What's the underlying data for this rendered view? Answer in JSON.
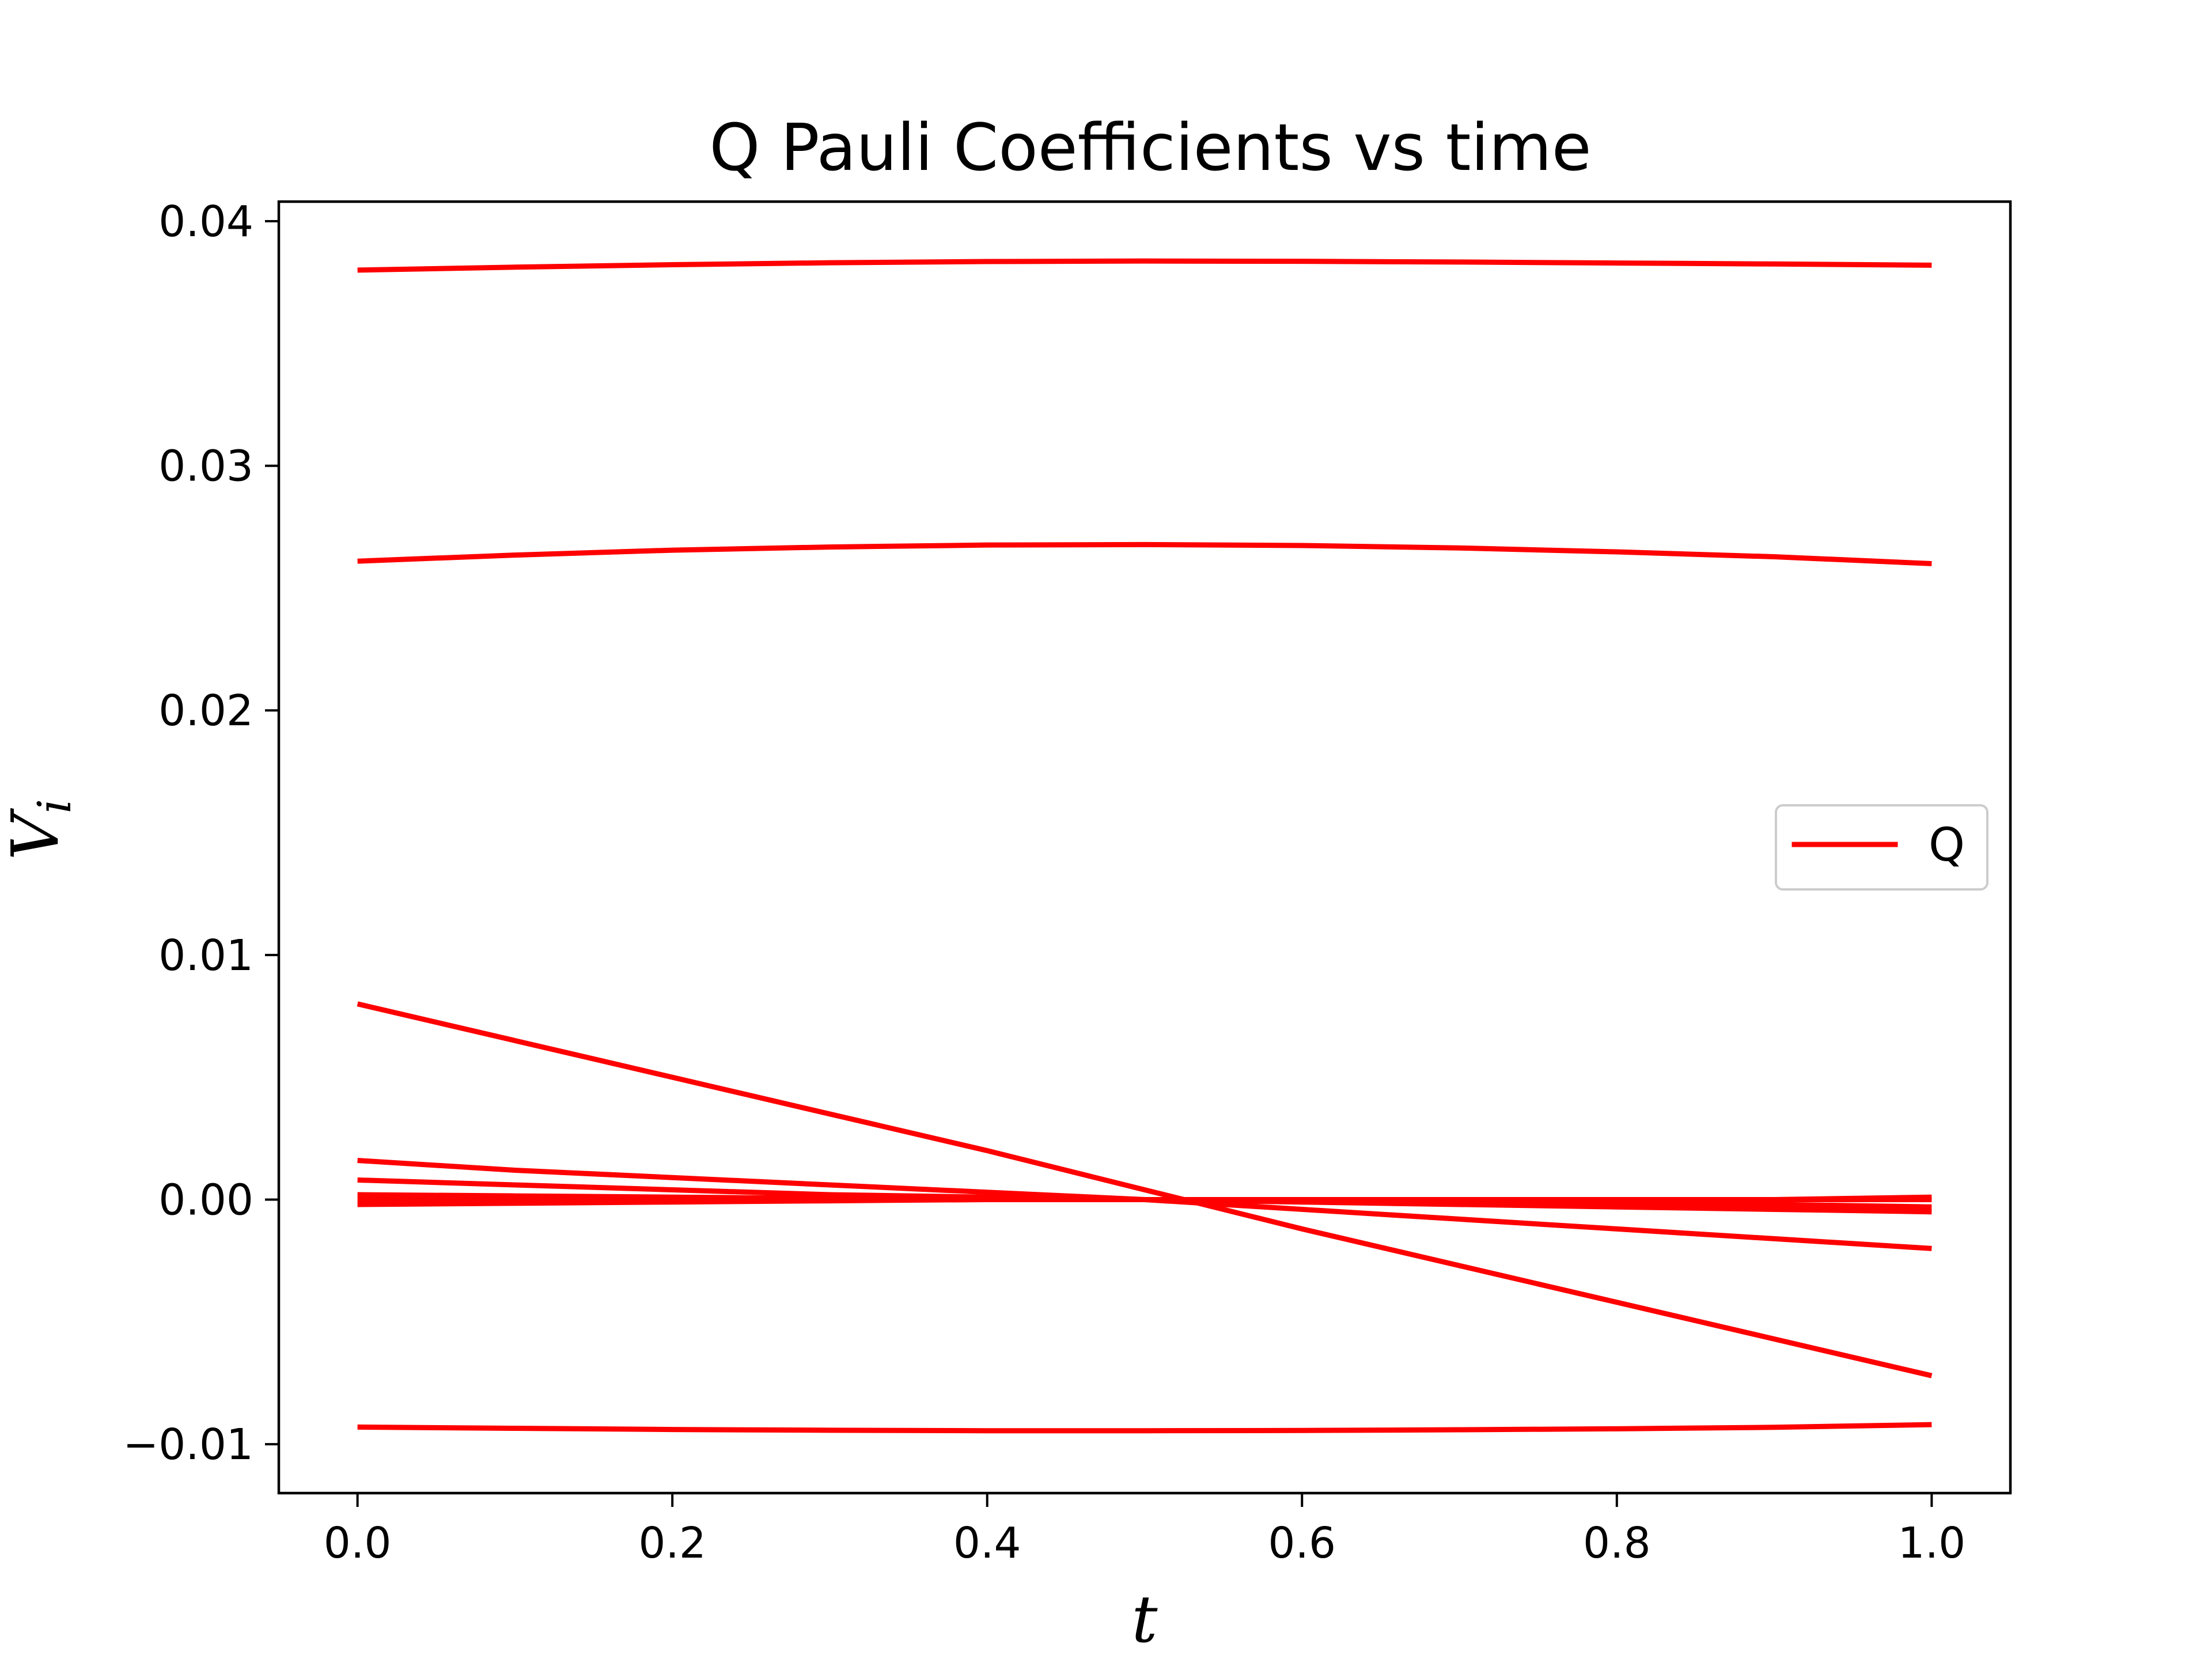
{
  "chart_data": {
    "type": "line",
    "title": "Q Pauli Coefficients vs time",
    "xlabel": "t",
    "ylabel_main": "V",
    "ylabel_sub": "i",
    "xlim": [
      -0.05,
      1.05
    ],
    "ylim": [
      -0.012,
      0.0408
    ],
    "x_ticks": [
      0.0,
      0.2,
      0.4,
      0.6,
      0.8,
      1.0
    ],
    "x_tick_labels": [
      "0.0",
      "0.2",
      "0.4",
      "0.6",
      "0.8",
      "1.0"
    ],
    "y_ticks": [
      -0.01,
      0.0,
      0.01,
      0.02,
      0.03,
      0.04
    ],
    "y_tick_labels": [
      "−0.01",
      "0.00",
      "0.01",
      "0.02",
      "0.03",
      "0.04"
    ],
    "grid": false,
    "legend": {
      "label": "Q",
      "placement": "center-right"
    },
    "color": "#ff0000",
    "x": [
      0.0,
      0.1,
      0.2,
      0.3,
      0.4,
      0.5,
      0.6,
      0.7,
      0.8,
      0.9,
      1.0
    ],
    "series": [
      {
        "values": [
          0.038,
          0.03812,
          0.03822,
          0.0383,
          0.03835,
          0.03837,
          0.03836,
          0.03833,
          0.03829,
          0.03825,
          0.0382
        ]
      },
      {
        "values": [
          0.0261,
          0.02635,
          0.02655,
          0.02668,
          0.02676,
          0.02678,
          0.02674,
          0.02664,
          0.02648,
          0.02628,
          0.026
        ]
      },
      {
        "values": [
          0.008,
          0.0065,
          0.005,
          0.0035,
          0.002,
          0.0004,
          -0.0012,
          -0.0027,
          -0.0042,
          -0.0057,
          -0.0072
        ]
      },
      {
        "values": [
          0.0016,
          0.0012,
          0.0009,
          0.0006,
          0.0003,
          0.0,
          -0.0004,
          -0.0008,
          -0.0012,
          -0.0016,
          -0.002
        ]
      },
      {
        "values": [
          0.0008,
          0.0006,
          0.0004,
          0.0002,
          0.0001,
          0.0,
          -0.0001,
          -0.0002,
          -0.0003,
          -0.0004,
          -0.0005
        ]
      },
      {
        "values": [
          0.0002,
          0.00015,
          0.0001,
          5e-05,
          0.0,
          0.0,
          -5e-05,
          -0.0001,
          -0.00015,
          -0.0002,
          -0.0003
        ]
      },
      {
        "values": [
          0.0,
          0.0,
          0.0,
          0.0,
          0.0,
          0.0,
          0.0,
          0.0,
          0.0,
          0.0,
          0.0
        ]
      },
      {
        "values": [
          -0.0002,
          -0.00015,
          -0.0001,
          -5e-05,
          0.0,
          0.0,
          0.0,
          0.0,
          0.0,
          0.0,
          0.0001
        ]
      },
      {
        "values": [
          -0.0093,
          -0.00935,
          -0.0094,
          -0.00943,
          -0.00945,
          -0.00945,
          -0.00944,
          -0.00941,
          -0.00937,
          -0.00931,
          -0.0092
        ]
      }
    ]
  }
}
